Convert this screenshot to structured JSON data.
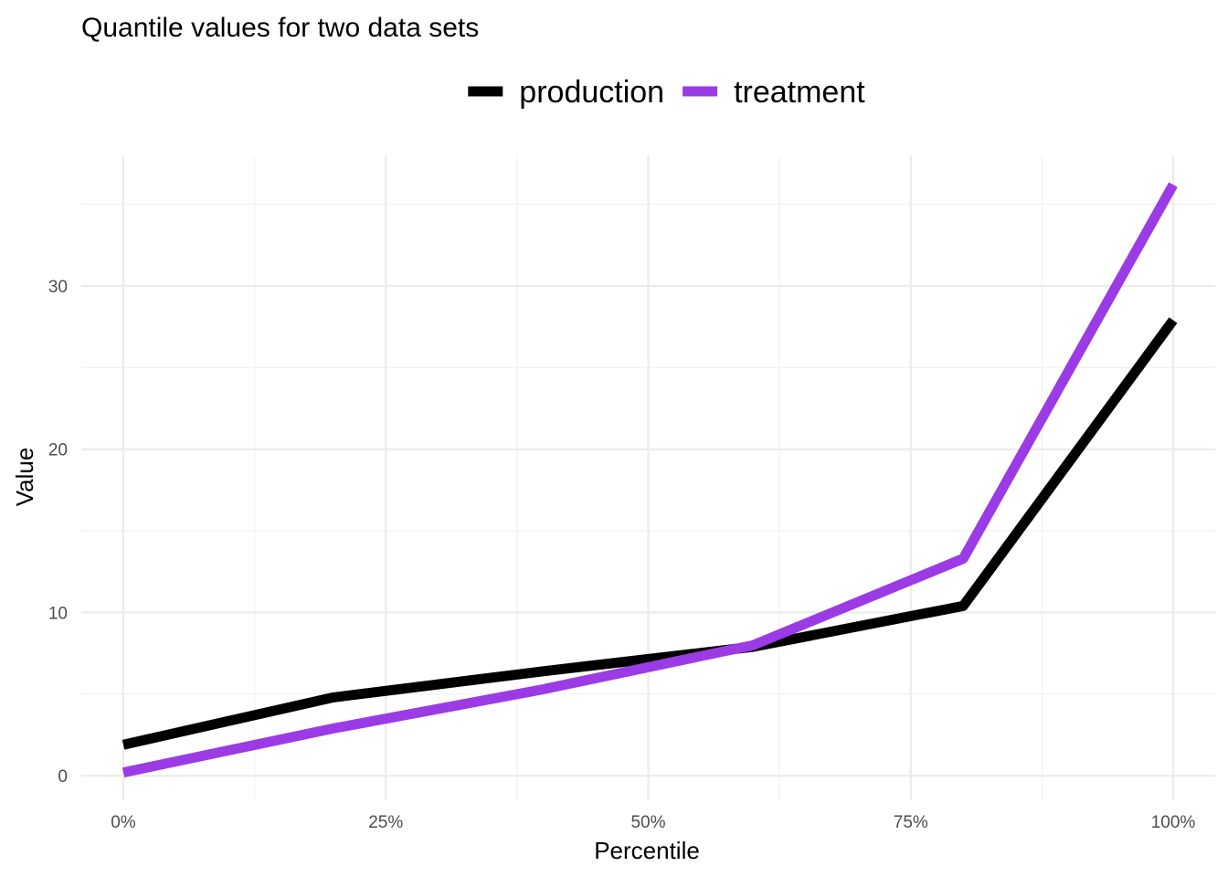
{
  "chart_data": {
    "type": "line",
    "title": "Quantile values for two data sets",
    "xlabel": "Percentile",
    "ylabel": "Value",
    "x": [
      0,
      20,
      40,
      60,
      80,
      100
    ],
    "x_ticks": [
      0,
      25,
      50,
      75,
      100
    ],
    "x_tick_labels": [
      "0%",
      "25%",
      "50%",
      "75%",
      "100%"
    ],
    "xlim": [
      -4,
      104
    ],
    "y_ticks": [
      0,
      10,
      20,
      30
    ],
    "y_tick_labels": [
      "0",
      "10",
      "20",
      "30"
    ],
    "ylim": [
      -1.5,
      38
    ],
    "grid": true,
    "legend_position": "top",
    "series": [
      {
        "name": "production",
        "color": "#000000",
        "values": [
          1.9,
          4.8,
          6.4,
          7.9,
          10.4,
          27.9
        ]
      },
      {
        "name": "treatment",
        "color": "#9b3be5",
        "values": [
          0.2,
          2.9,
          5.3,
          8.0,
          13.3,
          36.2
        ]
      }
    ]
  }
}
